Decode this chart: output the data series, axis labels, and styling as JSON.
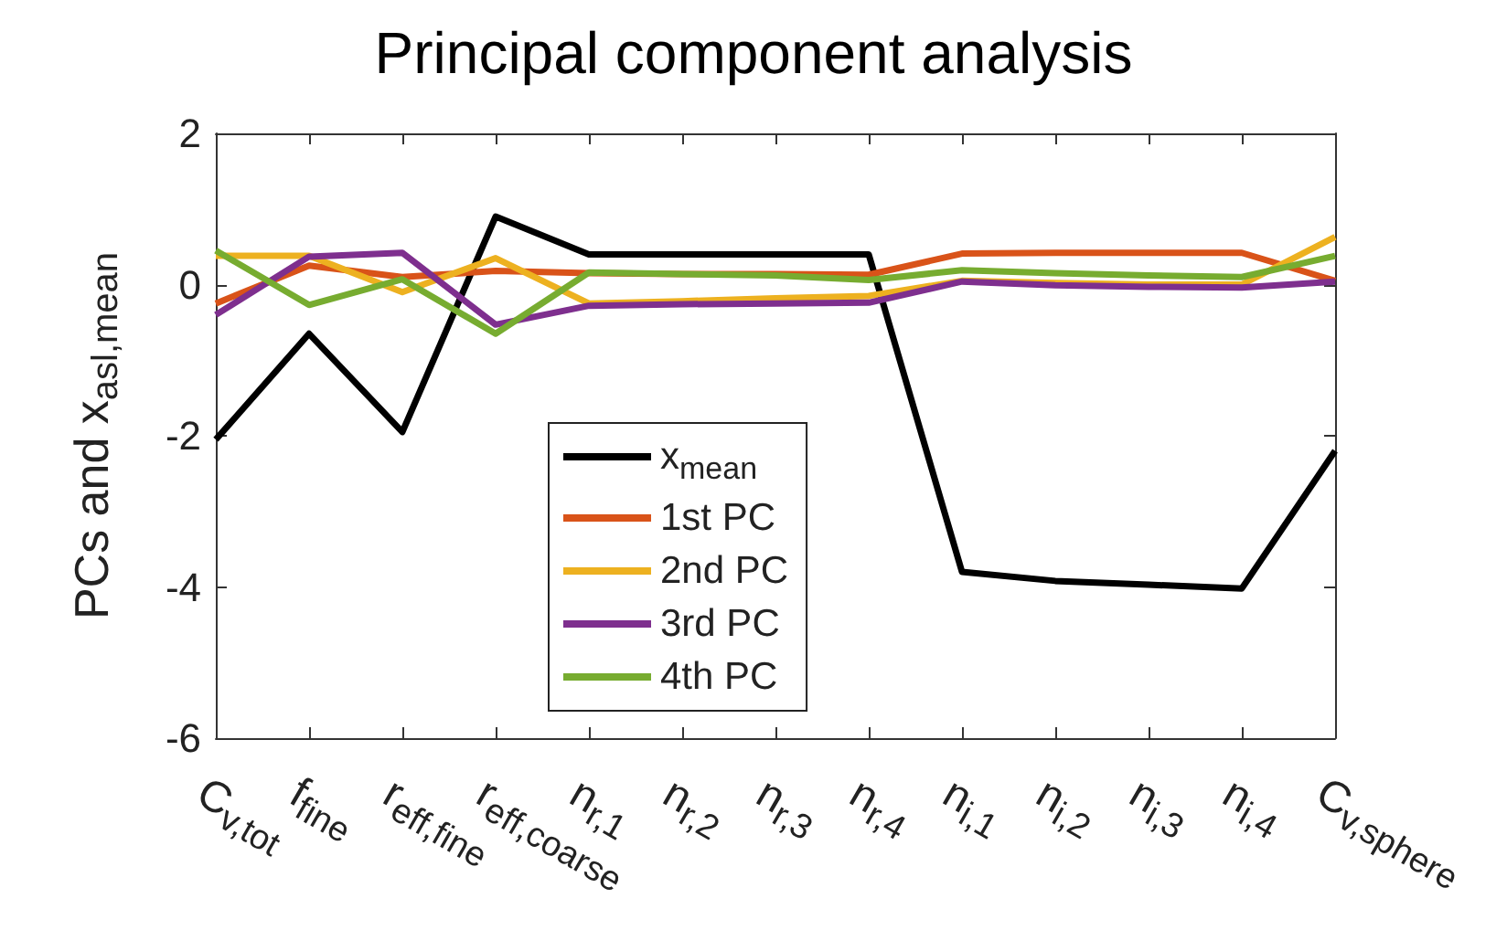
{
  "chart_data": {
    "type": "line",
    "title": "Principal component analysis",
    "ylabel": "PCs and x$_{asl,mean}$",
    "categories": [
      "C$_{v,tot}$",
      "f$_{fine}$",
      "r$_{eff,fine}$",
      "r$_{eff,coarse}$",
      "n$_{r,1}$",
      "n$_{r,2}$",
      "n$_{r,3}$",
      "n$_{r,4}$",
      "n$_{i,1}$",
      "n$_{i,2}$",
      "n$_{i,3}$",
      "n$_{i,4}$",
      "C$_{v,sphere}$"
    ],
    "series": [
      {
        "name": "x$_{mean}$",
        "color": "#000000",
        "values": [
          -2.05,
          -0.65,
          -1.95,
          0.9,
          0.4,
          0.4,
          0.4,
          0.4,
          -3.8,
          -3.92,
          -3.97,
          -4.02,
          -2.2
        ]
      },
      {
        "name": "1st PC",
        "color": "#d95319",
        "values": [
          -0.25,
          0.25,
          0.1,
          0.18,
          0.15,
          0.14,
          0.14,
          0.13,
          0.41,
          0.42,
          0.42,
          0.42,
          0.05
        ]
      },
      {
        "name": "2nd PC",
        "color": "#edb120",
        "values": [
          0.38,
          0.38,
          -0.1,
          0.35,
          -0.25,
          -0.22,
          -0.18,
          -0.15,
          0.05,
          0.02,
          0.0,
          0.0,
          0.63
        ]
      },
      {
        "name": "3rd PC",
        "color": "#7e2f8e",
        "values": [
          -0.4,
          0.37,
          0.42,
          -0.53,
          -0.28,
          -0.26,
          -0.25,
          -0.24,
          0.04,
          -0.01,
          -0.03,
          -0.04,
          0.04
        ]
      },
      {
        "name": "4th PC",
        "color": "#77ac30",
        "values": [
          0.45,
          -0.27,
          0.07,
          -0.65,
          0.16,
          0.14,
          0.12,
          0.06,
          0.19,
          0.15,
          0.12,
          0.1,
          0.38
        ]
      }
    ],
    "ylim": [
      -6,
      2
    ],
    "yticks": [
      -6,
      -4,
      -2,
      0,
      2
    ],
    "grid": false,
    "legend": "bottom",
    "marker": "none",
    "line_style": "solid"
  }
}
